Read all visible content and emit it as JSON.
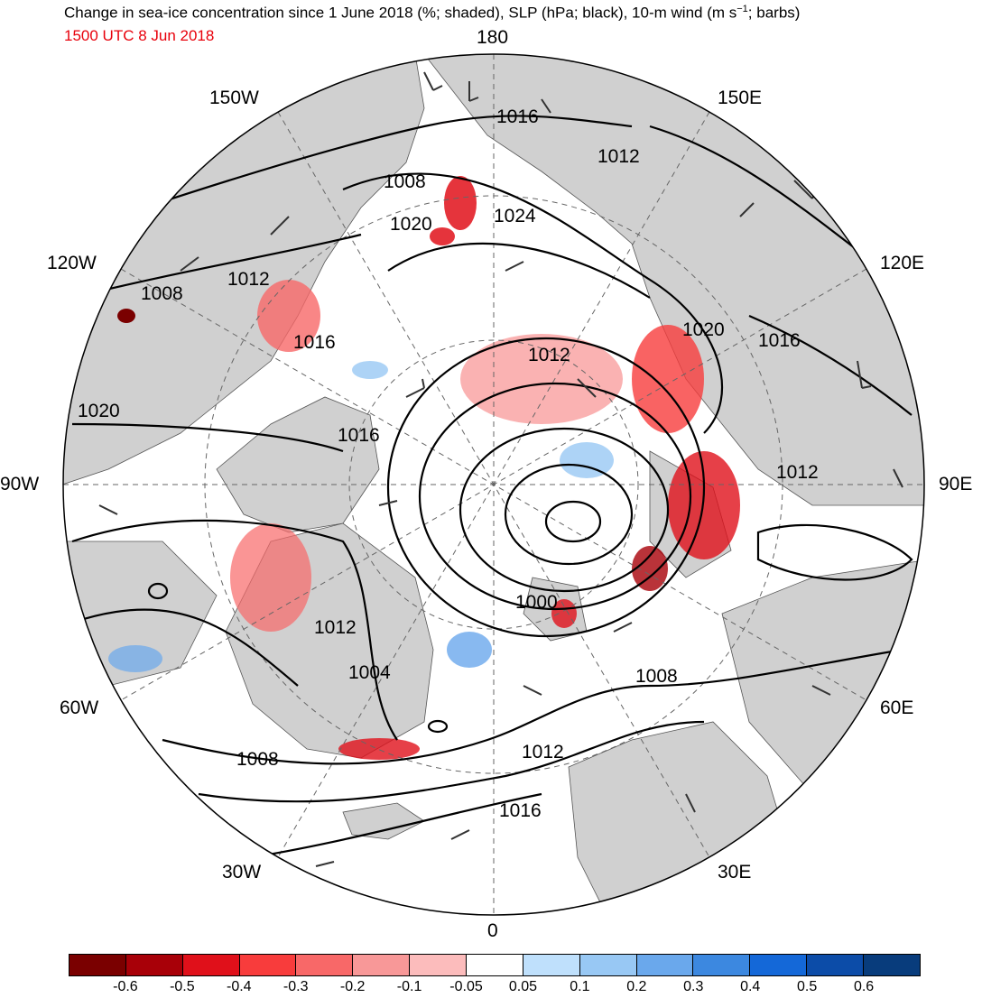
{
  "header": {
    "title_part1": "Change in sea-ice concentration since 1 June 2018 (%; shaded), SLP (hPa; black), 10-m wind (m s",
    "title_sup": "−1",
    "title_part2": "; barbs)",
    "valid_time": "1500 UTC 8 Jun 2018"
  },
  "longitude_labels": {
    "lon_180": "180",
    "lon_150w": "150W",
    "lon_150e": "150E",
    "lon_120w": "120W",
    "lon_120e": "120E",
    "lon_90w": "90W",
    "lon_90e": "90E",
    "lon_60w": "60W",
    "lon_60e": "60E",
    "lon_30w": "30W",
    "lon_30e": "30E",
    "lon_0": "0"
  },
  "isobar_labels": [
    {
      "id": "iso-1016-top",
      "text": "1016"
    },
    {
      "id": "iso-1012-ne",
      "text": "1012"
    },
    {
      "id": "iso-1008-n",
      "text": "1008"
    },
    {
      "id": "iso-1020-n",
      "text": "1020"
    },
    {
      "id": "iso-1024",
      "text": "1024"
    },
    {
      "id": "iso-1012-nw",
      "text": "1012"
    },
    {
      "id": "iso-1008-w",
      "text": "1008"
    },
    {
      "id": "iso-1016-canada",
      "text": "1016"
    },
    {
      "id": "iso-1012-center",
      "text": "1012"
    },
    {
      "id": "iso-1020-e",
      "text": "1020"
    },
    {
      "id": "iso-1016-e",
      "text": "1016"
    },
    {
      "id": "iso-1020-w",
      "text": "1020"
    },
    {
      "id": "iso-1016-mid",
      "text": "1016"
    },
    {
      "id": "iso-1012-east",
      "text": "1012"
    },
    {
      "id": "iso-1000",
      "text": "1000"
    },
    {
      "id": "iso-1012-greenland",
      "text": "1012"
    },
    {
      "id": "iso-1004",
      "text": "1004"
    },
    {
      "id": "iso-1008-barents",
      "text": "1008"
    },
    {
      "id": "iso-1008-atlantic",
      "text": "1008"
    },
    {
      "id": "iso-1012-south",
      "text": "1012"
    },
    {
      "id": "iso-1016-south",
      "text": "1016"
    }
  ],
  "colorbar": {
    "colors": [
      "#7a0000",
      "#a80008",
      "#e0101a",
      "#f83c3c",
      "#f86868",
      "#f89898",
      "#fcbcbc",
      "#ffffff",
      "#bfe0fc",
      "#98c8f4",
      "#6aa8ec",
      "#3c88e0",
      "#1468d8",
      "#0c4ca8",
      "#083c7c"
    ],
    "tick_labels": [
      "-0.6",
      "-0.5",
      "-0.4",
      "-0.3",
      "-0.2",
      "-0.1",
      "-0.05",
      "0.05",
      "0.1",
      "0.2",
      "0.3",
      "0.4",
      "0.5",
      "0.6"
    ]
  }
}
